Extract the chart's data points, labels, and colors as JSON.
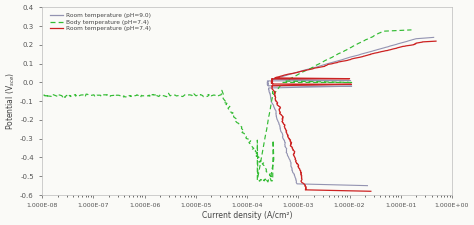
{
  "xlabel": "Current density (A/cm²)",
  "ylabel": "Potential (V$_{sce}$)",
  "legend": [
    "Room temperature (pH=7.4)",
    "Body temperature (pH=7.4)",
    "Room temperature (pH=9.0)"
  ],
  "legend_colors": [
    "#cc2222",
    "#33bb33",
    "#8888aa"
  ],
  "xlim": [
    1e-08,
    1.0
  ],
  "ylim": [
    -0.6,
    0.4
  ],
  "yticks": [
    -0.6,
    -0.5,
    -0.4,
    -0.3,
    -0.2,
    -0.1,
    0.0,
    0.1,
    0.2,
    0.3,
    0.4
  ],
  "bg": "#fafaf7",
  "fig_bg": "#fafaf7",
  "corr_pot_red": -0.01,
  "corr_pot_gray": -0.02,
  "corr_pot_green": -0.07,
  "passive_current_red": 0.0003,
  "passive_current_gray": 0.00025,
  "pitting_current_green": 0.0003,
  "trans_current_red": 0.005,
  "trans_current_gray": 0.004,
  "trans_current_green": 0.002
}
